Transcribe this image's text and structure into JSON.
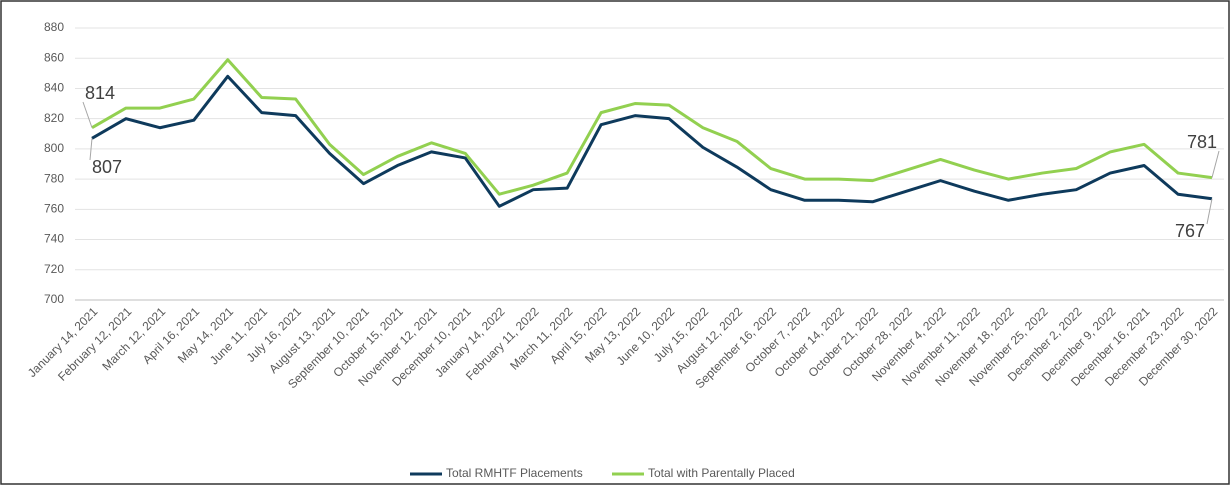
{
  "chart_data": {
    "type": "line",
    "categories": [
      "January 14, 2021",
      "February 12, 2021",
      "March 12, 2021",
      "April 16, 2021",
      "May 14, 2021",
      "June 11, 2021",
      "July 16, 2021",
      "August 13, 2021",
      "September 10, 2021",
      "October 15, 2021",
      "November 12, 2021",
      "December 10, 2021",
      "January 14, 2022",
      "February 11, 2022",
      "March 11, 2022",
      "April 15, 2022",
      "May 13, 2022",
      "June 10, 2022",
      "July 15, 2022",
      "August 12, 2022",
      "September 16, 2022",
      "October 7, 2022",
      "October 14, 2022",
      "October 21, 2022",
      "October 28, 2022",
      "November 4, 2022",
      "November 11, 2022",
      "November 18, 2022",
      "November 25, 2022",
      "December 2, 2022",
      "December 9, 2022",
      "December 16, 2021",
      "December 23, 2022",
      "December 30, 2022"
    ],
    "series": [
      {
        "name": "Total RMHTF Placements",
        "color": "#0e3a5c",
        "values": [
          807,
          820,
          814,
          819,
          848,
          824,
          822,
          797,
          777,
          789,
          798,
          794,
          762,
          773,
          774,
          816,
          822,
          820,
          801,
          788,
          773,
          766,
          766,
          765,
          772,
          779,
          772,
          766,
          770,
          773,
          784,
          789,
          770,
          767
        ]
      },
      {
        "name": "Total with Parentally Placed",
        "color": "#92d050",
        "values": [
          814,
          827,
          827,
          833,
          859,
          834,
          833,
          803,
          783,
          795,
          804,
          797,
          770,
          776,
          784,
          824,
          830,
          829,
          814,
          805,
          787,
          780,
          780,
          779,
          786,
          793,
          786,
          780,
          784,
          787,
          798,
          803,
          784,
          781
        ]
      }
    ],
    "ylim": [
      700,
      880
    ],
    "yticks": [
      700,
      720,
      740,
      760,
      780,
      800,
      820,
      840,
      860,
      880
    ],
    "grid": true,
    "legend": "bottom"
  }
}
